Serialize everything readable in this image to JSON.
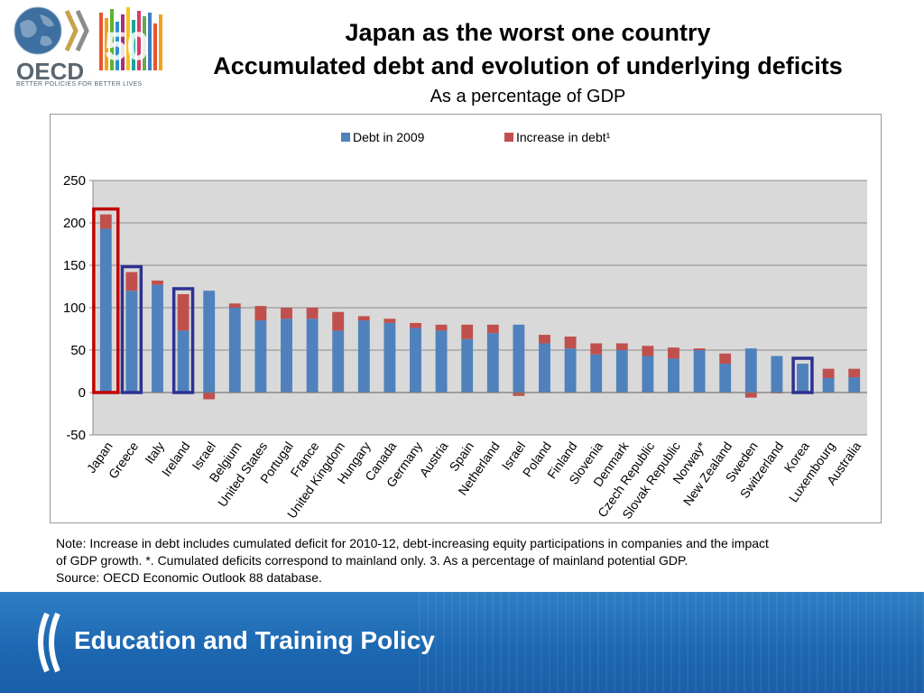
{
  "header": {
    "logo_text": "OECD",
    "logo_tagline": "BETTER POLICIES FOR BETTER LIVES",
    "anniversary_number": "50",
    "title_line1": "Japan as the worst one country",
    "title_line2": "Accumulated debt and evolution of underlying deficits",
    "title_line3": "As a percentage of GDP"
  },
  "colors": {
    "debt": "#4f81bd",
    "increase": "#c0504d",
    "highlight_red": "#c00000",
    "highlight_blue": "#2e3192",
    "plot_bg": "#d9d9d9"
  },
  "chart_data": {
    "type": "bar",
    "stacked": true,
    "title": "",
    "xlabel": "",
    "ylabel": "",
    "ylim": [
      -50,
      250
    ],
    "yticks": [
      -50,
      0,
      50,
      100,
      150,
      200,
      250
    ],
    "grid": true,
    "legend_position": "top",
    "categories": [
      "Japan",
      "Greece",
      "Italy",
      "Ireland",
      "Israel",
      "Belgium",
      "United States",
      "Portugal",
      "France",
      "United Kingdom",
      "Hungary",
      "Canada",
      "Germany",
      "Austria",
      "Spain",
      "Netherland",
      "Israel",
      "Poland",
      "Finland",
      "Slovenia",
      "Denmark",
      "Czech Republic",
      "Slovak Republic",
      "Norway*",
      "New Zealand",
      "Sweden",
      "Switzerland",
      "Korea",
      "Luxembourg",
      "Australia"
    ],
    "series": [
      {
        "name": "Debt in 2009",
        "values": [
          193,
          120,
          127,
          73,
          120,
          100,
          85,
          87,
          87,
          73,
          85,
          82,
          76,
          73,
          63,
          70,
          80,
          58,
          52,
          45,
          50,
          43,
          40,
          50,
          34,
          52,
          43,
          34,
          17,
          18
        ]
      },
      {
        "name": "Increase in debt¹",
        "values": [
          17,
          22,
          5,
          43,
          -8,
          5,
          17,
          13,
          13,
          22,
          5,
          5,
          6,
          7,
          17,
          10,
          -4,
          10,
          14,
          13,
          8,
          12,
          13,
          2,
          12,
          -6,
          -1,
          0,
          11,
          10
        ]
      }
    ],
    "highlighted": [
      {
        "category": "Japan",
        "color": "red"
      },
      {
        "category": "Greece",
        "color": "blue"
      },
      {
        "category": "Ireland",
        "color": "blue"
      },
      {
        "category": "Korea",
        "color": "blue"
      }
    ]
  },
  "note": {
    "line1": "Note: Increase in debt includes cumulated deficit for 2010-12, debt-increasing equity participations in companies and the impact",
    "line2": "of GDP growth. *. Cumulated deficits correspond to mainland only. 3. As a percentage of mainland potential GDP.",
    "line3": "Source: OECD Economic Outlook 88 database."
  },
  "footer": {
    "title": "Education and Training Policy"
  }
}
